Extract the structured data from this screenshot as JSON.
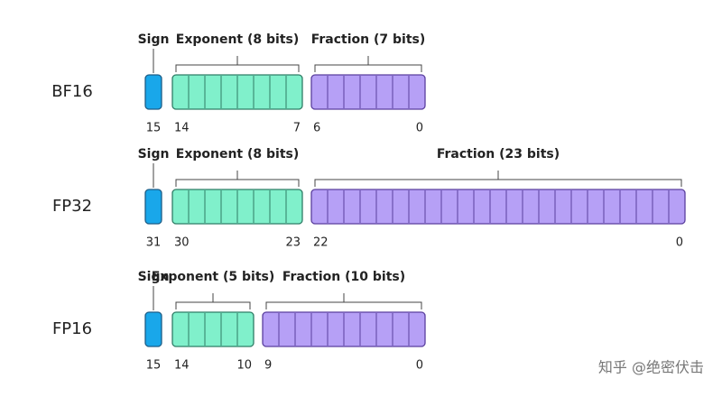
{
  "formats": [
    {
      "name": "BF16",
      "sign": {
        "label": "Sign",
        "bit": 15
      },
      "exponent": {
        "label": "Exponent (8 bits)",
        "high": 14,
        "low": 7
      },
      "fraction": {
        "label": "Fraction (7 bits)",
        "high": 6,
        "low": 0
      }
    },
    {
      "name": "FP32",
      "sign": {
        "label": "Sign",
        "bit": 31
      },
      "exponent": {
        "label": "Exponent (8 bits)",
        "high": 30,
        "low": 23
      },
      "fraction": {
        "label": "Fraction (23 bits)",
        "high": 22,
        "low": 0
      }
    },
    {
      "name": "FP16",
      "sign": {
        "label": "Sign",
        "bit": 15
      },
      "exponent": {
        "label": "Exponent (5 bits)",
        "high": 14,
        "low": 10
      },
      "fraction": {
        "label": "Fraction (10 bits)",
        "high": 9,
        "low": 0
      }
    }
  ],
  "watermark": "知乎 @绝密伏击"
}
